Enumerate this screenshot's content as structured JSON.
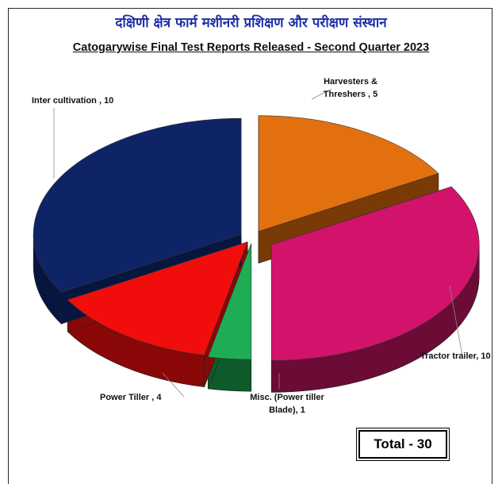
{
  "title_hindi": "दक्षिणी क्षेत्र फार्म मशीनरी प्रशिक्षण और परीक्षण संस्थान",
  "title_english": "Catogarywise Final Test Reports Released - Second Quarter 2023",
  "total_label": "Total - 30",
  "chart_data": {
    "type": "pie",
    "title": "Catogarywise Final Test Reports Released - Second Quarter 2023",
    "categories": [
      "Harvesters & Threshers",
      "Tractor trailer",
      "Misc. (Power tiller Blade)",
      "Power Tiller",
      "Inter cultivation"
    ],
    "values": [
      5,
      10,
      1,
      4,
      10
    ],
    "colors": [
      "#E2700F",
      "#D3126C",
      "#1EAD55",
      "#F20D0D",
      "#0E2466"
    ],
    "side_colors": [
      "#7A3A06",
      "#6B0B36",
      "#0E5A2B",
      "#8A0707",
      "#07163F"
    ],
    "data_labels": [
      [
        "Harvesters &",
        "Threshers , 5"
      ],
      [
        "Tractor trailer, 10"
      ],
      [
        "Misc. (Power tiller",
        "Blade), 1"
      ],
      [
        "Power Tiller , 4"
      ],
      [
        "Inter cultivation  , 10"
      ]
    ],
    "legend": "none",
    "style": "3d-exploded"
  }
}
